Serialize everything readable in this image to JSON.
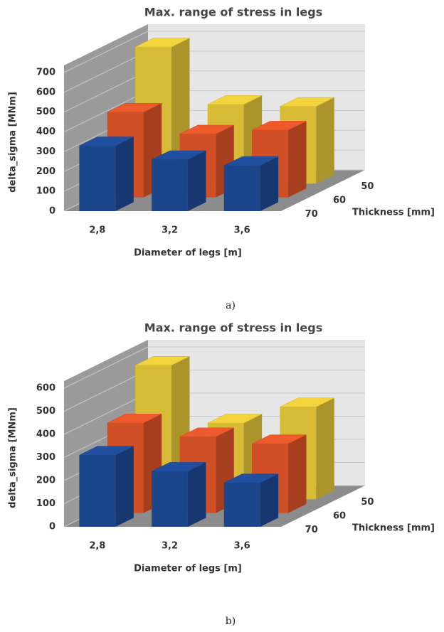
{
  "chart_data": [
    {
      "type": "bar3d",
      "title": "Max. range of stress in legs",
      "y_label": "delta_sigma [MNm]",
      "x_label": "Diameter of legs [m]",
      "z_label": "Thickness [mm]",
      "caption": "a)",
      "categories": [
        "2,8",
        "3,2",
        "3,6"
      ],
      "series": [
        {
          "name": "70",
          "color": "#1f4f9e",
          "values": [
            330,
            260,
            230
          ]
        },
        {
          "name": "60",
          "color": "#ee5a2c",
          "values": [
            430,
            320,
            340
          ]
        },
        {
          "name": "50",
          "color": "#f4d43c",
          "values": [
            690,
            400,
            390
          ]
        }
      ],
      "ylim": [
        0,
        700
      ],
      "yticks": [
        0,
        100,
        200,
        300,
        400,
        500,
        600,
        700
      ],
      "grid": true
    },
    {
      "type": "bar3d",
      "title": "Max. range of stress in legs",
      "y_label": "delta_sigma [MNm]",
      "x_label": "Diameter of legs [m]",
      "z_label": "Thickness [mm]",
      "caption": "b)",
      "categories": [
        "2,8",
        "3,2",
        "3,6"
      ],
      "series": [
        {
          "name": "70",
          "color": "#1f4f9e",
          "values": [
            310,
            240,
            190
          ]
        },
        {
          "name": "60",
          "color": "#ee5a2c",
          "values": [
            390,
            330,
            300
          ]
        },
        {
          "name": "50",
          "color": "#f4d43c",
          "values": [
            580,
            330,
            400
          ]
        }
      ],
      "ylim": [
        0,
        600
      ],
      "yticks": [
        0,
        100,
        200,
        300,
        400,
        500,
        600
      ],
      "grid": true
    }
  ]
}
